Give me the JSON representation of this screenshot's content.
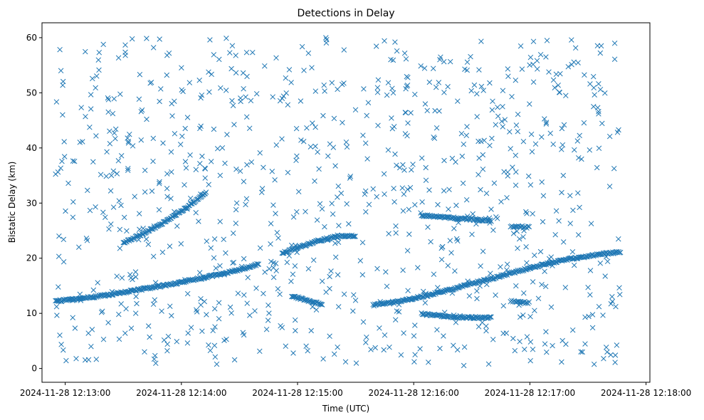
{
  "chart_data": {
    "type": "scatter",
    "title": "Detections in Delay",
    "xlabel": "Time (UTC)",
    "ylabel": "Bistatic Delay (km)",
    "x_unit": "UTC time",
    "xlim": [
      "2024-11-28 12:12:48",
      "2024-11-28 12:18:02"
    ],
    "ylim": [
      -2.5,
      62.7
    ],
    "x_ticks": [
      "2024-11-28 12:13:00",
      "2024-11-28 12:14:00",
      "2024-11-28 12:15:00",
      "2024-11-28 12:16:00",
      "2024-11-28 12:17:00",
      "2024-11-28 12:18:00"
    ],
    "y_ticks": [
      0,
      10,
      20,
      30,
      40,
      50,
      60
    ],
    "grid": false,
    "marker": "x",
    "color": "#1f77b4",
    "series": [
      {
        "name": "",
        "kind": "track",
        "x_range": [
          "2024-11-28 12:12:55",
          "2024-11-28 12:14:12"
        ],
        "points": [
          [
            "12:12:55",
            12.2
          ],
          [
            "12:13:05",
            12.6
          ],
          [
            "12:13:15",
            13.0
          ],
          [
            "12:13:25",
            13.5
          ],
          [
            "12:13:35",
            14.1
          ],
          [
            "12:13:45",
            14.7
          ],
          [
            "12:13:55",
            15.3
          ],
          [
            "12:14:05",
            16.0
          ],
          [
            "12:14:12",
            16.5
          ]
        ]
      },
      {
        "name": "",
        "kind": "track",
        "x_range": [
          "2024-11-28 12:14:12",
          "2024-11-28 12:14:40"
        ],
        "points": [
          [
            "12:14:12",
            16.5
          ],
          [
            "12:14:20",
            17.1
          ],
          [
            "12:14:30",
            17.9
          ],
          [
            "12:14:40",
            19.0
          ]
        ]
      },
      {
        "name": "",
        "kind": "track",
        "x_range": [
          "2024-11-28 12:13:30",
          "2024-11-28 12:14:13"
        ],
        "points": [
          [
            "12:13:30",
            22.8
          ],
          [
            "12:13:40",
            24.4
          ],
          [
            "12:13:50",
            26.3
          ],
          [
            "12:14:00",
            28.5
          ],
          [
            "12:14:13",
            32.0
          ]
        ]
      },
      {
        "name": "",
        "kind": "track",
        "x_range": [
          "2024-11-28 12:14:52",
          "2024-11-28 12:15:30"
        ],
        "points": [
          [
            "12:14:52",
            20.9
          ],
          [
            "12:15:00",
            21.9
          ],
          [
            "12:15:10",
            23.1
          ],
          [
            "12:15:20",
            23.9
          ],
          [
            "12:15:30",
            24.1
          ]
        ]
      },
      {
        "name": "",
        "kind": "track",
        "x_range": [
          "2024-11-28 12:14:57",
          "2024-11-28 12:15:13"
        ],
        "points": [
          [
            "12:14:57",
            13.2
          ],
          [
            "12:15:05",
            12.3
          ],
          [
            "12:15:13",
            11.6
          ]
        ]
      },
      {
        "name": "",
        "kind": "track",
        "x_range": [
          "2024-11-28 12:15:39",
          "2024-11-28 12:17:00"
        ],
        "points": [
          [
            "12:15:39",
            11.5
          ],
          [
            "12:15:50",
            12.0
          ],
          [
            "12:16:00",
            12.7
          ],
          [
            "12:16:10",
            13.5
          ],
          [
            "12:16:20",
            14.4
          ],
          [
            "12:16:30",
            15.4
          ],
          [
            "12:16:40",
            16.3
          ],
          [
            "12:16:50",
            17.3
          ],
          [
            "12:17:00",
            18.2
          ]
        ]
      },
      {
        "name": "",
        "kind": "track",
        "x_range": [
          "2024-11-28 12:17:00",
          "2024-11-28 12:17:47"
        ],
        "points": [
          [
            "12:17:00",
            18.2
          ],
          [
            "12:17:10",
            19.1
          ],
          [
            "12:17:20",
            19.8
          ],
          [
            "12:17:30",
            20.4
          ],
          [
            "12:17:40",
            20.9
          ],
          [
            "12:17:47",
            21.1
          ]
        ]
      },
      {
        "name": "",
        "kind": "track",
        "x_range": [
          "2024-11-28 12:16:04",
          "2024-11-28 12:16:40"
        ],
        "points": [
          [
            "12:16:04",
            27.8
          ],
          [
            "12:16:20",
            27.3
          ],
          [
            "12:16:40",
            26.8
          ]
        ]
      },
      {
        "name": "",
        "kind": "track",
        "x_range": [
          "2024-11-28 12:16:04",
          "2024-11-28 12:16:40"
        ],
        "points": [
          [
            "12:16:04",
            9.9
          ],
          [
            "12:16:20",
            9.3
          ],
          [
            "12:16:40",
            9.2
          ]
        ]
      },
      {
        "name": "",
        "kind": "cluster",
        "x_range": [
          "2024-11-28 12:16:50",
          "2024-11-28 12:17:00"
        ],
        "points": [
          [
            "12:16:50",
            25.8
          ],
          [
            "12:17:00",
            25.6
          ]
        ]
      },
      {
        "name": "",
        "kind": "cluster",
        "x_range": [
          "2024-11-28 12:16:50",
          "2024-11-28 12:17:00"
        ],
        "points": [
          [
            "12:16:50",
            12.2
          ],
          [
            "12:17:00",
            11.9
          ]
        ]
      },
      {
        "name": "",
        "kind": "clutter",
        "x_range": [
          "2024-11-28 12:12:55",
          "2024-11-28 12:17:47"
        ],
        "y_range": [
          0.5,
          60
        ],
        "count": 900
      }
    ]
  }
}
